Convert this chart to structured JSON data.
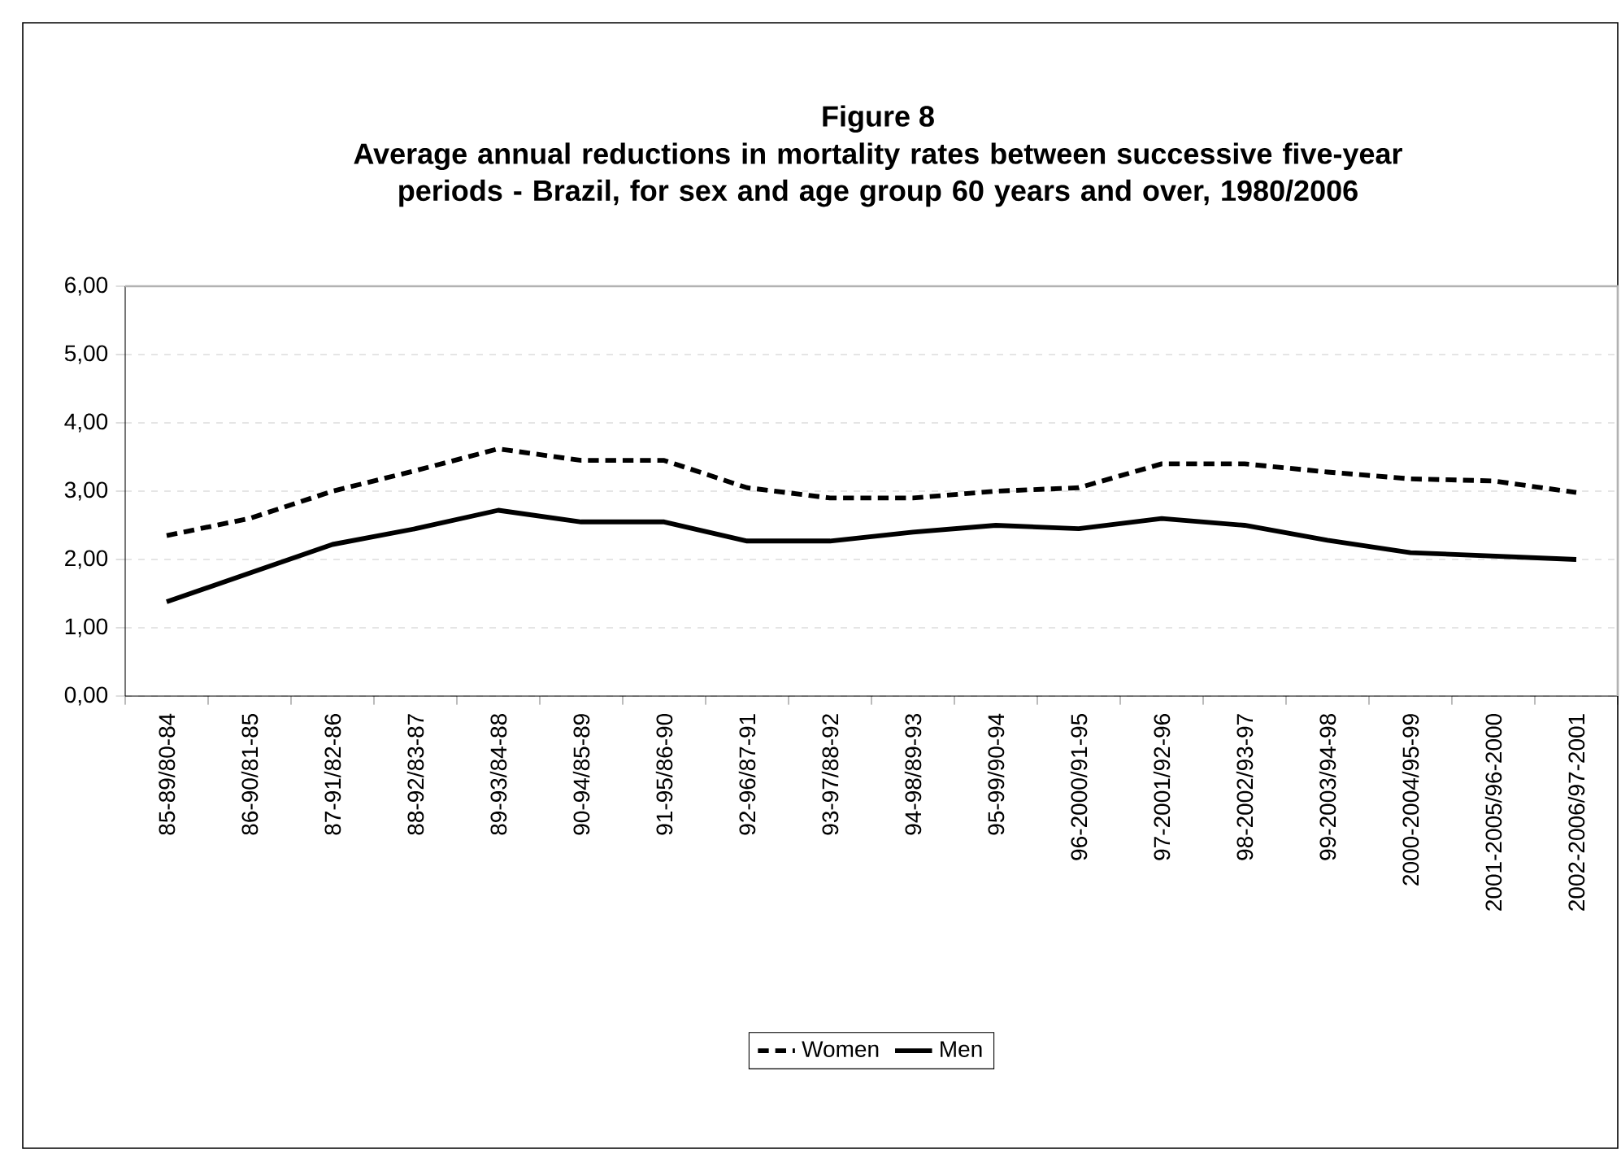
{
  "chart_data": {
    "type": "line",
    "title": "Figure 8",
    "subtitle": "Average annual reductions in mortality rates between successive five-year periods - Brazil, for sex and age group 60 years and over, 1980/2006",
    "categories": [
      "85-89/80-84",
      "86-90/81-85",
      "87-91/82-86",
      "88-92/83-87",
      "89-93/84-88",
      "90-94/85-89",
      "91-95/86-90",
      "92-96/87-91",
      "93-97/88-92",
      "94-98/89-93",
      "95-99/90-94",
      "96-2000/91-95",
      "97-2001/92-96",
      "98-2002/93-97",
      "99-2003/94-98",
      "2000-2004/95-99",
      "2001-2005/96-2000",
      "2002-2006/97-2001"
    ],
    "series": [
      {
        "name": "Women",
        "color": "#000000",
        "line_style": "dashed",
        "values": [
          2.35,
          2.6,
          3.0,
          3.3,
          3.62,
          3.45,
          3.45,
          3.05,
          2.9,
          2.9,
          3.0,
          3.05,
          3.4,
          3.4,
          3.28,
          3.18,
          3.15,
          2.98
        ]
      },
      {
        "name": "Men",
        "color": "#000000",
        "line_style": "solid",
        "values": [
          1.38,
          1.8,
          2.22,
          2.45,
          2.72,
          2.55,
          2.55,
          2.27,
          2.27,
          2.4,
          2.5,
          2.45,
          2.6,
          2.5,
          2.28,
          2.1,
          2.05,
          2.0
        ]
      }
    ],
    "ylim": [
      0,
      6
    ],
    "yticks": [
      {
        "value": 0,
        "label": "0,00"
      },
      {
        "value": 1,
        "label": "1,00"
      },
      {
        "value": 2,
        "label": "2,00"
      },
      {
        "value": 3,
        "label": "3,00"
      },
      {
        "value": 4,
        "label": "4,00"
      },
      {
        "value": 5,
        "label": "5,00"
      },
      {
        "value": 6,
        "label": "6,00"
      }
    ],
    "grid": "y",
    "legend": "bottom",
    "marker": "none"
  }
}
